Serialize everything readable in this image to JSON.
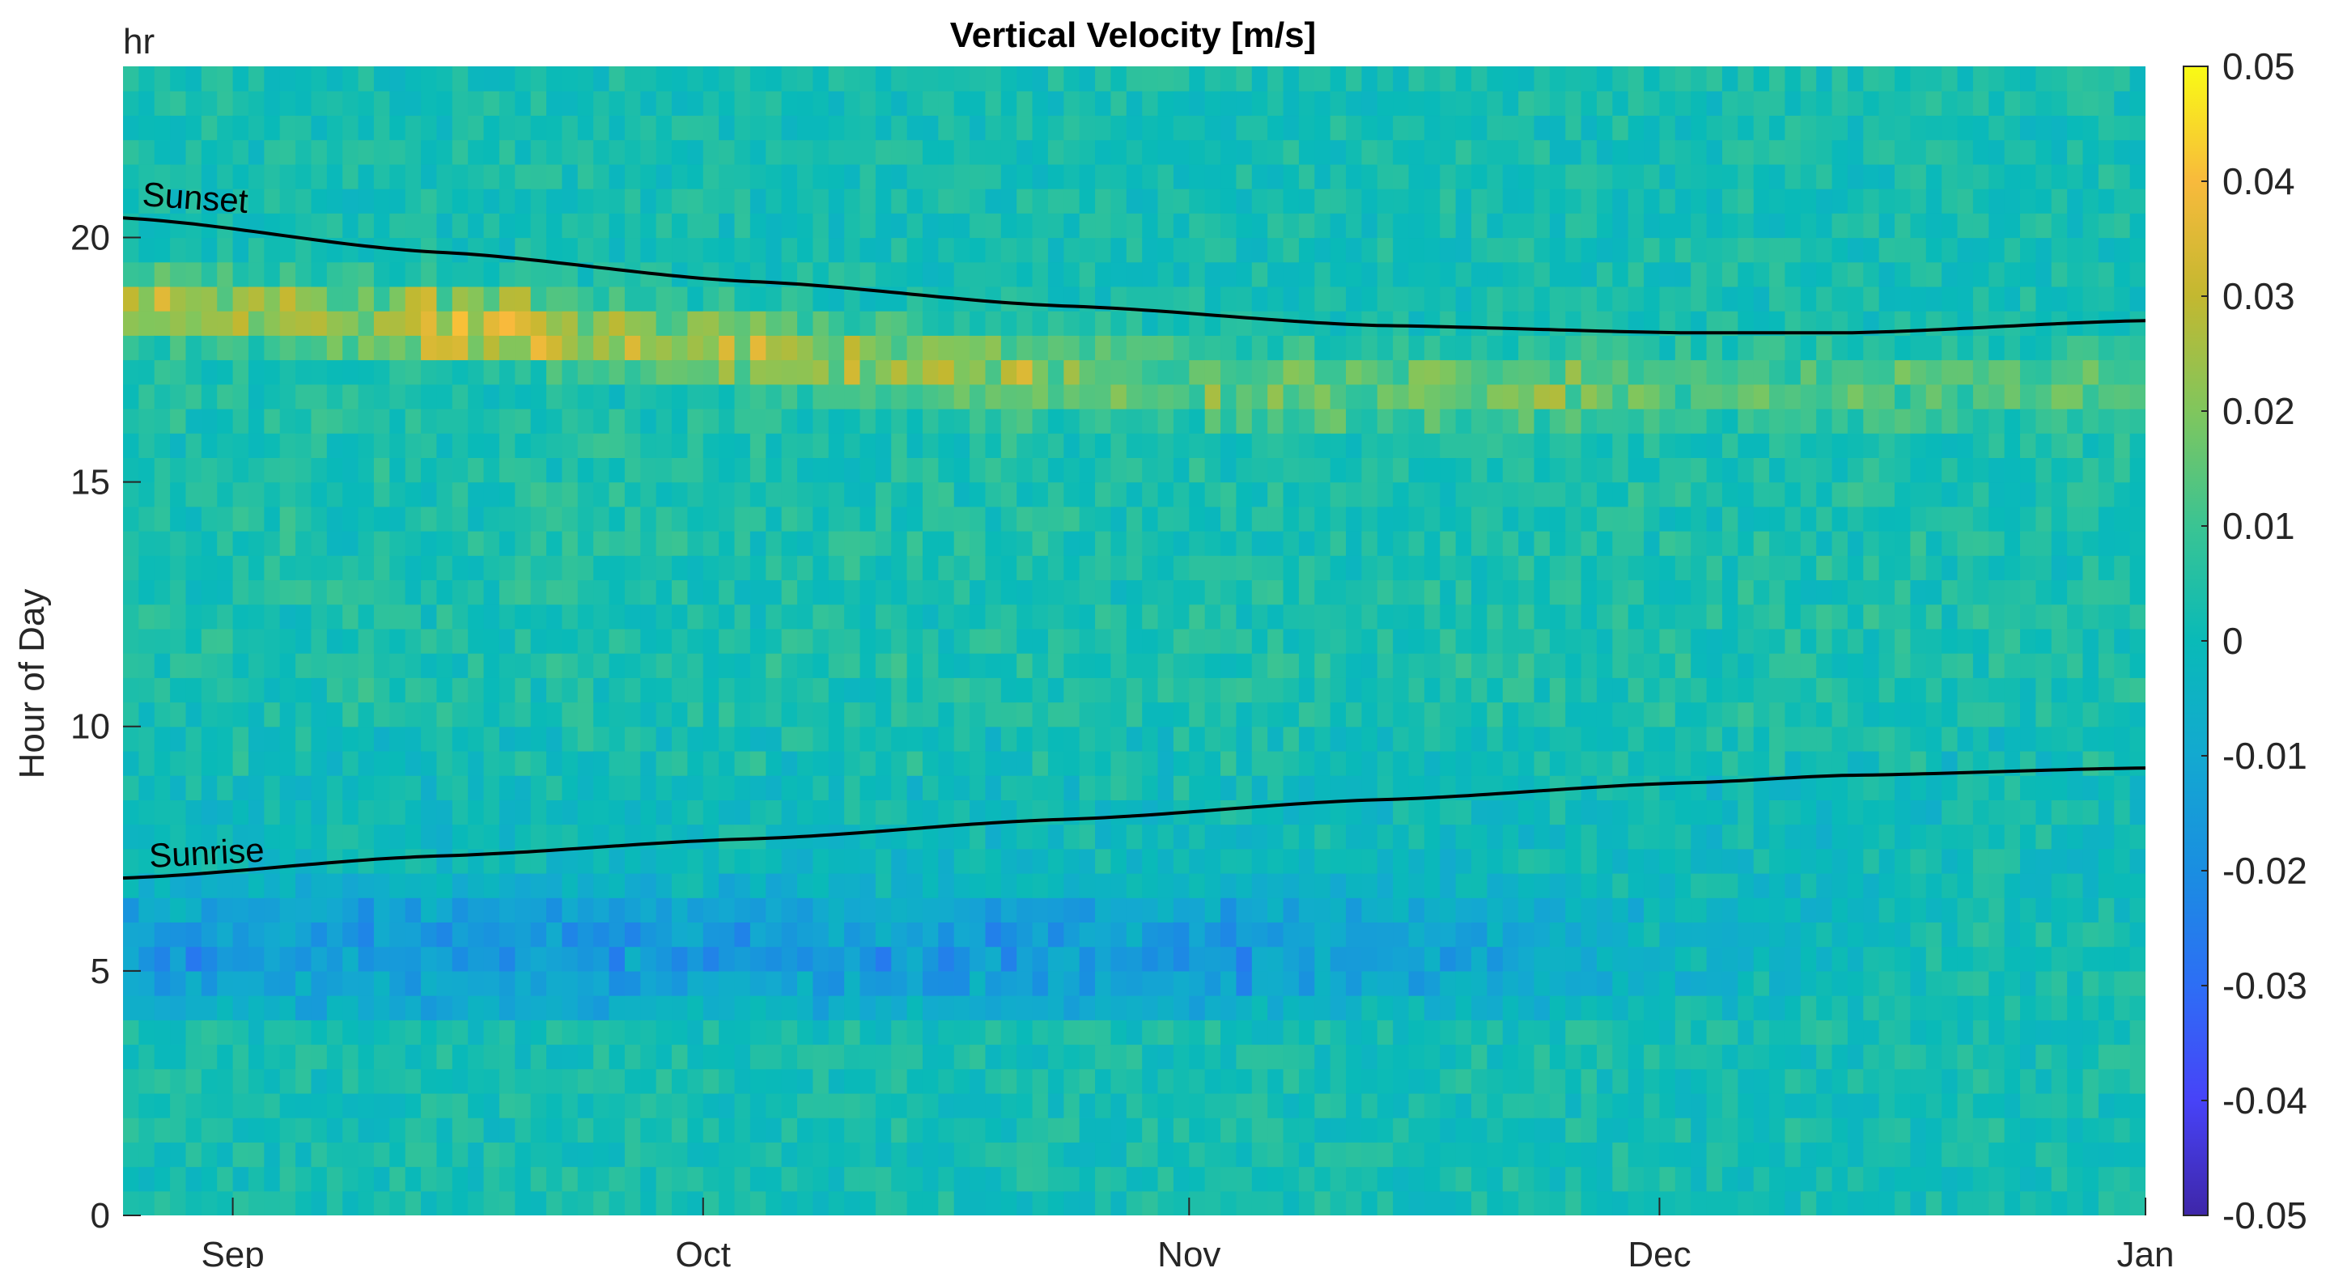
{
  "chart_data": {
    "type": "heatmap",
    "title": "Vertical Velocity [m/s]",
    "ylabel": "Hour of Day",
    "yunit_label": "hr",
    "xlabel": "",
    "x_tick_labels": [
      "Sep",
      "Oct",
      "Nov",
      "Dec",
      "Jan"
    ],
    "x_tick_day_index": [
      7,
      37,
      68,
      98,
      129
    ],
    "x_range_days": [
      0,
      129
    ],
    "y_ticks": [
      0,
      5,
      10,
      15,
      20
    ],
    "ylim": [
      0,
      23.5
    ],
    "cell_hours": 0.5,
    "colorbar": {
      "min": -0.05,
      "max": 0.05,
      "ticks": [
        "0.05",
        "0.04",
        "0.03",
        "0.02",
        "0.01",
        "0",
        "-0.01",
        "-0.02",
        "-0.03",
        "-0.04",
        "-0.05"
      ],
      "colormap": "parula"
    },
    "field_description_points": {
      "baseline": 0.002,
      "afternoon_band": {
        "hour_start_early": 18.5,
        "hour_start_late": 16.7,
        "peak_value": 0.05,
        "typical_value": 0.03
      },
      "dawn_band": {
        "hour_center": 5.3,
        "peak_value": -0.025
      }
    },
    "annotations": [
      {
        "text": "Sunset",
        "curve": "sunset"
      },
      {
        "text": "Sunrise",
        "curve": "sunrise"
      }
    ],
    "curves": {
      "sunset": {
        "x_days": [
          0,
          20,
          40,
          60,
          80,
          100,
          110,
          129
        ],
        "y_hours": [
          20.4,
          19.7,
          19.1,
          18.6,
          18.2,
          18.05,
          18.05,
          18.3
        ]
      },
      "sunrise": {
        "x_days": [
          0,
          20,
          40,
          60,
          80,
          100,
          110,
          129
        ],
        "y_hours": [
          6.9,
          7.35,
          7.7,
          8.1,
          8.5,
          8.85,
          9.0,
          9.15
        ]
      }
    }
  }
}
